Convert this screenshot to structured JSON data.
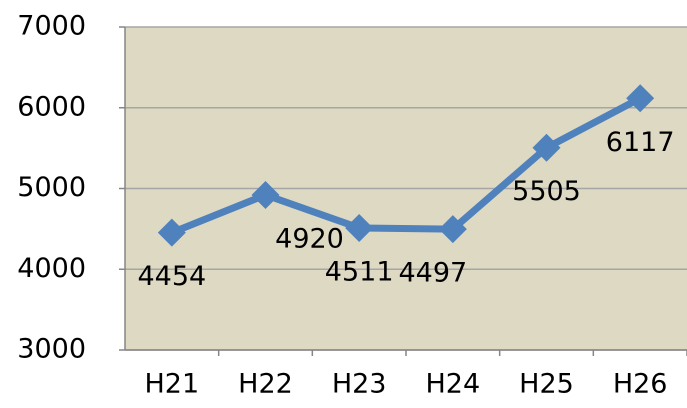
{
  "chart_data": {
    "type": "line",
    "categories": [
      "H21",
      "H22",
      "H23",
      "H24",
      "H25",
      "H26"
    ],
    "series": [
      {
        "color": "#4f81bd",
        "values": [
          4454,
          4920,
          4511,
          4497,
          5505,
          6117
        ]
      }
    ],
    "ylim": [
      3000,
      7000
    ],
    "yticks": [
      3000,
      4000,
      5000,
      6000,
      7000
    ],
    "grid": true,
    "plot_background": "#ddd9c3"
  }
}
